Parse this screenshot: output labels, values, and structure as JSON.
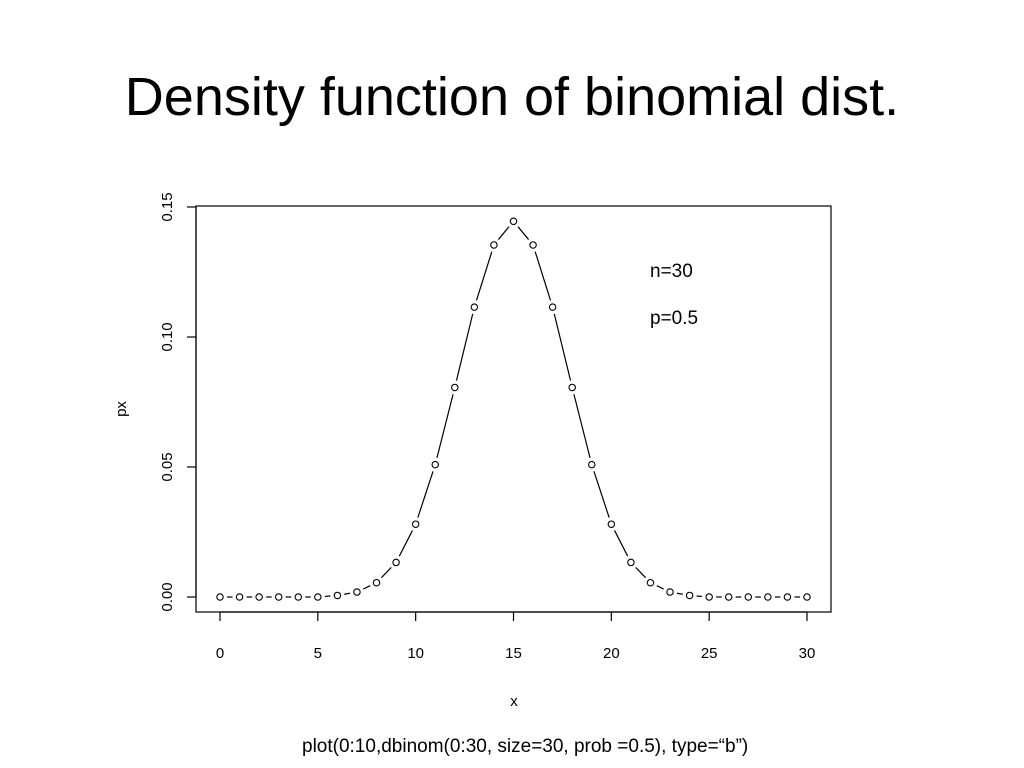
{
  "slide": {
    "title": "Density function of binomial dist.",
    "caption": "plot(0:10,dbinom(0:30, size=30, prob =0.5), type=“b”)"
  },
  "chart_data": {
    "type": "line",
    "plot_type": "points-and-lines",
    "title": "",
    "xlabel": "x",
    "ylabel": "px",
    "xlim": [
      0,
      30
    ],
    "ylim": [
      0,
      0.15
    ],
    "x_ticks": [
      0,
      5,
      10,
      15,
      20,
      25,
      30
    ],
    "x_tick_labels": [
      "0",
      "5",
      "10",
      "15",
      "20",
      "25",
      "30"
    ],
    "y_ticks": [
      0,
      0.05,
      0.1,
      0.15
    ],
    "y_tick_labels": [
      "0.00",
      "0.05",
      "0.10",
      "0.15"
    ],
    "grid": false,
    "annotations": [
      "n=30",
      "p=0.5"
    ],
    "series": [
      {
        "x": [
          0,
          1,
          2,
          3,
          4,
          5,
          6,
          7,
          8,
          9,
          10,
          11,
          12,
          13,
          14,
          15,
          16,
          17,
          18,
          19,
          20,
          21,
          22,
          23,
          24,
          25,
          26,
          27,
          28,
          29,
          30
        ],
        "values": [
          0,
          0,
          0,
          0,
          0,
          0,
          0.0006,
          0.0019,
          0.0055,
          0.0133,
          0.028,
          0.0509,
          0.0806,
          0.1115,
          0.1354,
          0.1445,
          0.1354,
          0.1115,
          0.0806,
          0.0509,
          0.028,
          0.0133,
          0.0055,
          0.0019,
          0.0006,
          0,
          0,
          0,
          0,
          0,
          0
        ]
      }
    ]
  }
}
